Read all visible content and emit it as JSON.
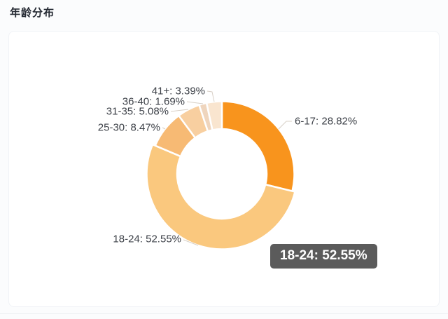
{
  "page": {
    "title": "年龄分布"
  },
  "chart_data": {
    "type": "pie",
    "subtype": "donut",
    "title": "年龄分布",
    "legend_position": "none",
    "grid": false,
    "start_angle_deg_from_top": 0,
    "direction": "clockwise",
    "categories": [
      "6-17",
      "18-24",
      "25-30",
      "31-35",
      "36-40",
      "41+"
    ],
    "values": [
      28.82,
      52.55,
      8.47,
      5.08,
      1.69,
      3.39
    ],
    "unit": "%",
    "colors": [
      "#F8941D",
      "#FAC87E",
      "#F7BA74",
      "#F8CFA0",
      "#EFD5BD",
      "#F9E5CF"
    ],
    "slice_labels": [
      "6-17: 28.82%",
      "18-24: 52.55%",
      "25-30: 8.47%",
      "31-35: 5.08%",
      "36-40: 1.69%",
      "41+: 3.39%"
    ],
    "hovered_slice": "18-24",
    "tooltip": {
      "text": "18-24:  52.55%",
      "background": "#5b5b5b",
      "text_color": "#ffffff"
    },
    "accent_color": "#F8941D",
    "slice_border_color": "#ffffff"
  }
}
